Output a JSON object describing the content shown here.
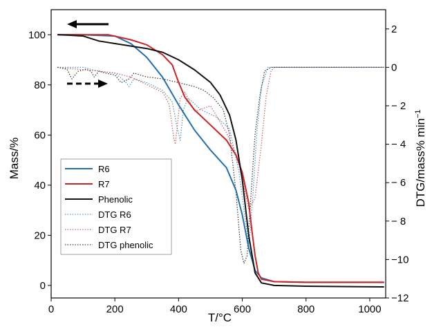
{
  "chart_data": {
    "type": "line",
    "xlabel": "T/°C",
    "ylabel_left": "Mass/%",
    "ylabel_right": "DTG/mass% min",
    "ylabel_right_superscript": "−1",
    "xlim": [
      0,
      1050
    ],
    "ylim_left": [
      -5,
      110
    ],
    "ylim_right": [
      -12,
      3
    ],
    "x_ticks": [
      0,
      200,
      400,
      600,
      800,
      1000
    ],
    "y_left_ticks": [
      0,
      20,
      40,
      60,
      80,
      100
    ],
    "y_right_ticks": [
      -12,
      -10,
      -8,
      -6,
      -4,
      -2,
      0,
      2
    ],
    "y_right_tick_labels": [
      "−12",
      "−10",
      "− 8",
      "− 6",
      "− 4",
      "− 2",
      "0",
      "2"
    ],
    "grid": false,
    "legend_position": "lower-left",
    "annotations": [
      {
        "type": "arrow",
        "direction": "left",
        "style": "solid",
        "meaning": "mass curves use left axis"
      },
      {
        "type": "arrow",
        "direction": "right",
        "style": "dashed",
        "meaning": "DTG curves use right axis"
      }
    ],
    "series": [
      {
        "name": "R6",
        "axis": "left",
        "color": "#1f6fb0",
        "dash": "solid",
        "x": [
          20,
          100,
          200,
          250,
          300,
          350,
          400,
          450,
          500,
          550,
          580,
          600,
          620,
          640,
          660,
          700,
          800,
          1045
        ],
        "y": [
          100,
          100,
          99.5,
          96.5,
          91,
          83,
          72,
          62,
          54,
          47,
          38,
          28,
          15,
          6,
          3,
          1.5,
          1.2,
          1.2
        ]
      },
      {
        "name": "R7",
        "axis": "left",
        "color": "#cc2222",
        "dash": "solid",
        "x": [
          20,
          100,
          180,
          250,
          300,
          350,
          380,
          400,
          420,
          450,
          500,
          550,
          580,
          600,
          620,
          630,
          640,
          650,
          660,
          700,
          800,
          1045
        ],
        "y": [
          100,
          100,
          100,
          98,
          96,
          92,
          88,
          81,
          75,
          70,
          64,
          58,
          52,
          45,
          33,
          22,
          12,
          5,
          2.5,
          1.5,
          1.3,
          1.3
        ]
      },
      {
        "name": "Phenolic",
        "axis": "left",
        "color": "#111111",
        "dash": "solid",
        "x": [
          20,
          60,
          100,
          150,
          200,
          300,
          350,
          400,
          450,
          500,
          530,
          560,
          580,
          600,
          620,
          640,
          660,
          700,
          800,
          1045
        ],
        "y": [
          100,
          99.8,
          99.5,
          97.5,
          96.5,
          94.5,
          93,
          90,
          86,
          81,
          76,
          68,
          58,
          42,
          20,
          5,
          1,
          0,
          -0.3,
          -0.6
        ]
      },
      {
        "name": "DTG R6",
        "axis": "right",
        "color": "#4a90c8",
        "dash": "dotted",
        "x": [
          20,
          100,
          150,
          200,
          230,
          245,
          260,
          300,
          350,
          380,
          395,
          405,
          415,
          430,
          470,
          520,
          560,
          590,
          610,
          620,
          625,
          635,
          645,
          660,
          680,
          700,
          1045
        ],
        "y": [
          0,
          0,
          -0.2,
          -0.3,
          -0.7,
          -1,
          -0.6,
          -0.8,
          -1.2,
          -1.8,
          -3.1,
          -3.8,
          -2.2,
          -1.6,
          -2.2,
          -2.6,
          -3.2,
          -5.5,
          -8.0,
          -9.2,
          -8.5,
          -6.2,
          -3.5,
          -1.0,
          0,
          0,
          0
        ]
      },
      {
        "name": "DTG R7",
        "axis": "right",
        "color": "#d45a5a",
        "dash": "dotted",
        "x": [
          20,
          150,
          200,
          250,
          300,
          350,
          370,
          385,
          390,
          395,
          405,
          420,
          450,
          500,
          550,
          580,
          600,
          620,
          640,
          660,
          675,
          690,
          700,
          1045
        ],
        "y": [
          0,
          -0.2,
          -0.3,
          -0.5,
          -0.9,
          -1.3,
          -1.9,
          -3.7,
          -4.0,
          -3.2,
          -1.6,
          -1.3,
          -2.3,
          -2.0,
          -3.4,
          -4.5,
          -5.8,
          -7.4,
          -6.8,
          -4.0,
          -1.5,
          -0.2,
          0,
          0
        ]
      },
      {
        "name": "DTG phenolic",
        "axis": "right",
        "color": "#333333",
        "dash": "dotted",
        "x": [
          20,
          50,
          65,
          85,
          110,
          125,
          135,
          150,
          170,
          200,
          220,
          245,
          260,
          300,
          350,
          400,
          450,
          480,
          510,
          540,
          560,
          580,
          595,
          605,
          615,
          625,
          640,
          655,
          670,
          690,
          1045
        ],
        "y": [
          0,
          -0.1,
          -0.6,
          -0.2,
          -0.1,
          -0.2,
          -0.5,
          -0.2,
          -0.3,
          -0.4,
          -0.8,
          -0.6,
          -0.3,
          -0.5,
          -0.6,
          -0.8,
          -1.0,
          -1.2,
          -1.6,
          -2.2,
          -3.5,
          -6.5,
          -9.5,
          -10.2,
          -9.8,
          -7.2,
          -3.5,
          -1.5,
          -0.2,
          0,
          0
        ]
      }
    ]
  }
}
